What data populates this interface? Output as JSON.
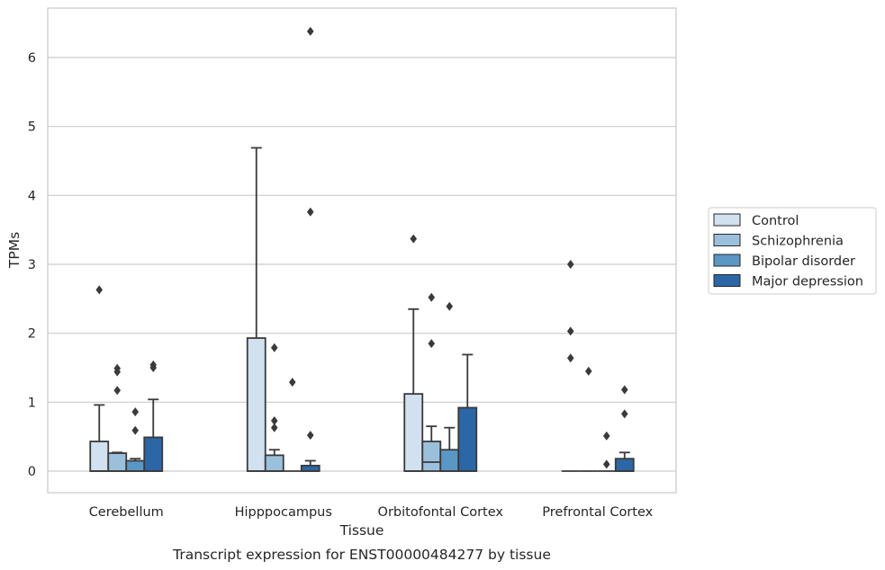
{
  "chart_data": {
    "type": "box",
    "xlabel": "Tissue",
    "ylabel": "TPMs",
    "caption": "Transcript expression for ENST00000484277 by tissue",
    "ylim": [
      -0.3,
      6.75
    ],
    "yticks": [
      0,
      1,
      2,
      3,
      4,
      5,
      6
    ],
    "grid": "horizontal",
    "legend_position": "right",
    "categories": [
      "Cerebellum",
      "Hipppocampus",
      "Orbitofontal Cortex",
      "Prefrontal Cortex"
    ],
    "series": [
      {
        "name": "Control",
        "color": "#d1e1f0",
        "boxes": [
          {
            "q1": 0,
            "median": 0,
            "q3": 0.43,
            "whislo": 0,
            "whishi": 0.96,
            "fliers": [
              2.63
            ]
          },
          {
            "q1": 0,
            "median": 0,
            "q3": 1.93,
            "whislo": 0,
            "whishi": 4.69,
            "fliers": []
          },
          {
            "q1": 0,
            "median": 0,
            "q3": 1.12,
            "whislo": 0,
            "whishi": 2.35,
            "fliers": [
              3.37
            ]
          },
          {
            "q1": 0,
            "median": 0,
            "q3": 0,
            "whislo": 0,
            "whishi": 0,
            "fliers": [
              3.0,
              2.03,
              1.64
            ]
          }
        ]
      },
      {
        "name": "Schizophrenia",
        "color": "#9bc0dc",
        "boxes": [
          {
            "q1": 0,
            "median": 0,
            "q3": 0.26,
            "whislo": 0,
            "whishi": 0.27,
            "fliers": [
              1.49,
              1.44,
              1.17
            ]
          },
          {
            "q1": 0,
            "median": 0,
            "q3": 0.23,
            "whislo": 0,
            "whishi": 0.31,
            "fliers": [
              1.79,
              0.73,
              0.63
            ]
          },
          {
            "q1": 0,
            "median": 0.13,
            "q3": 0.43,
            "whislo": 0,
            "whishi": 0.65,
            "fliers": [
              2.52,
              1.85
            ]
          },
          {
            "q1": 0,
            "median": 0,
            "q3": 0,
            "whislo": 0,
            "whishi": 0,
            "fliers": [
              1.45
            ]
          }
        ]
      },
      {
        "name": "Bipolar disorder",
        "color": "#5b97c5",
        "boxes": [
          {
            "q1": 0,
            "median": 0,
            "q3": 0.15,
            "whislo": 0,
            "whishi": 0.18,
            "fliers": [
              0.86,
              0.59
            ]
          },
          {
            "q1": 0,
            "median": 0,
            "q3": 0,
            "whislo": 0,
            "whishi": 0,
            "fliers": [
              1.29
            ]
          },
          {
            "q1": 0,
            "median": 0,
            "q3": 0.31,
            "whislo": 0,
            "whishi": 0.63,
            "fliers": [
              2.39
            ]
          },
          {
            "q1": 0,
            "median": 0,
            "q3": 0,
            "whislo": 0,
            "whishi": 0,
            "fliers": [
              0.51,
              0.1
            ]
          }
        ]
      },
      {
        "name": "Major depression",
        "color": "#2b67a6",
        "boxes": [
          {
            "q1": 0,
            "median": 0,
            "q3": 0.49,
            "whislo": 0,
            "whishi": 1.04,
            "fliers": [
              1.54,
              1.5
            ]
          },
          {
            "q1": 0,
            "median": 0,
            "q3": 0.08,
            "whislo": 0,
            "whishi": 0.15,
            "fliers": [
              6.38,
              3.76,
              0.52
            ]
          },
          {
            "q1": 0,
            "median": 0,
            "q3": 0.92,
            "whislo": 0,
            "whishi": 1.69,
            "fliers": []
          },
          {
            "q1": 0,
            "median": 0,
            "q3": 0.18,
            "whislo": 0,
            "whishi": 0.27,
            "fliers": [
              1.18,
              0.83
            ]
          }
        ]
      }
    ]
  }
}
